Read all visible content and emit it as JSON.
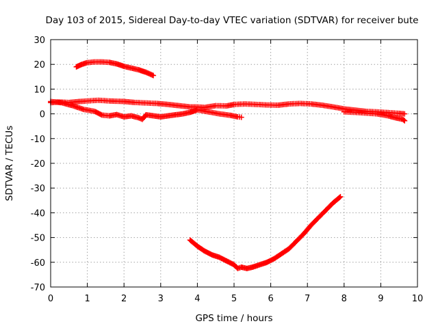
{
  "chart_data": {
    "type": "scatter",
    "title": "Day 103 of 2015, Sidereal Day-to-day VTEC variation (SDTVAR) for receiver bute",
    "xlabel": "GPS time / hours",
    "ylabel": "SDTVAR / TECUs",
    "xlim": [
      0,
      10
    ],
    "ylim": [
      -70,
      30
    ],
    "xticks": [
      "0",
      "1",
      "2",
      "3",
      "4",
      "5",
      "6",
      "7",
      "8",
      "9",
      "10"
    ],
    "yticks": [
      "-70",
      "-60",
      "-50",
      "-40",
      "-30",
      "-20",
      "-10",
      "0",
      "10",
      "20",
      "30"
    ],
    "grid": true,
    "marker": "plus",
    "color": "#ff0000",
    "series": [
      {
        "points": [
          [
            0.7,
            19
          ],
          [
            0.85,
            20
          ],
          [
            1.0,
            20.7
          ],
          [
            1.2,
            21
          ],
          [
            1.4,
            21
          ],
          [
            1.6,
            20.8
          ],
          [
            1.8,
            20.2
          ],
          [
            2.0,
            19.2
          ],
          [
            2.2,
            18.5
          ],
          [
            2.4,
            17.8
          ],
          [
            2.6,
            16.8
          ],
          [
            2.8,
            15.5
          ]
        ]
      },
      {
        "points": [
          [
            0,
            4.5
          ],
          [
            0.2,
            4.8
          ],
          [
            0.5,
            4.6
          ],
          [
            0.8,
            5
          ],
          [
            1.0,
            5.2
          ],
          [
            1.3,
            5.5
          ],
          [
            1.6,
            5.2
          ],
          [
            2.0,
            5
          ],
          [
            2.3,
            4.6
          ],
          [
            2.6,
            4.4
          ],
          [
            2.9,
            4.2
          ],
          [
            3.2,
            3.8
          ],
          [
            3.5,
            3.3
          ],
          [
            3.8,
            2.8
          ],
          [
            4.0,
            2.8
          ],
          [
            4.2,
            2.6
          ],
          [
            4.5,
            3.3
          ],
          [
            4.8,
            3.2
          ],
          [
            5.0,
            3.8
          ],
          [
            5.3,
            4
          ],
          [
            5.6,
            3.8
          ],
          [
            5.9,
            3.6
          ],
          [
            6.2,
            3.5
          ],
          [
            6.5,
            4
          ],
          [
            6.8,
            4.2
          ],
          [
            7.1,
            4
          ],
          [
            7.4,
            3.5
          ],
          [
            7.7,
            2.8
          ],
          [
            8.0,
            2
          ],
          [
            8.3,
            1.5
          ],
          [
            8.6,
            1
          ],
          [
            8.9,
            0.8
          ],
          [
            9.2,
            0.5
          ],
          [
            9.5,
            0.2
          ],
          [
            9.65,
            0
          ]
        ]
      },
      {
        "points": [
          [
            0,
            5
          ],
          [
            0.3,
            4.5
          ],
          [
            0.6,
            3.3
          ],
          [
            0.9,
            1.8
          ],
          [
            1.2,
            1
          ],
          [
            1.4,
            -0.5
          ],
          [
            1.6,
            -0.8
          ],
          [
            1.8,
            -0.3
          ],
          [
            2.0,
            -1.2
          ],
          [
            2.2,
            -0.8
          ],
          [
            2.4,
            -1.6
          ],
          [
            2.5,
            -2.2
          ],
          [
            2.6,
            -0.4
          ],
          [
            2.8,
            -0.8
          ],
          [
            3.0,
            -1.2
          ],
          [
            3.2,
            -0.8
          ],
          [
            3.4,
            -0.4
          ],
          [
            3.6,
            0
          ],
          [
            3.8,
            0.6
          ],
          [
            4.0,
            1.6
          ],
          [
            4.3,
            0.8
          ],
          [
            4.6,
            0
          ],
          [
            4.9,
            -0.6
          ],
          [
            5.1,
            -1.2
          ],
          [
            5.2,
            -1.4
          ]
        ]
      },
      {
        "points": [
          [
            8.0,
            0.8
          ],
          [
            8.3,
            0.6
          ],
          [
            8.6,
            0.3
          ],
          [
            8.9,
            0
          ],
          [
            9.2,
            -0.8
          ],
          [
            9.4,
            -1.6
          ],
          [
            9.6,
            -2.2
          ],
          [
            9.65,
            -2.8
          ]
        ]
      },
      {
        "points": [
          [
            3.8,
            -51
          ],
          [
            4.0,
            -53.5
          ],
          [
            4.2,
            -55.5
          ],
          [
            4.4,
            -57
          ],
          [
            4.6,
            -58
          ],
          [
            4.8,
            -59.5
          ],
          [
            5.0,
            -61
          ],
          [
            5.1,
            -62.5
          ],
          [
            5.2,
            -62
          ],
          [
            5.35,
            -62.5
          ],
          [
            5.5,
            -62
          ],
          [
            5.7,
            -61
          ],
          [
            5.9,
            -60
          ],
          [
            6.1,
            -58.5
          ],
          [
            6.3,
            -56.5
          ],
          [
            6.5,
            -54.5
          ],
          [
            6.7,
            -51.5
          ],
          [
            6.9,
            -48.5
          ],
          [
            7.1,
            -45
          ],
          [
            7.3,
            -42
          ],
          [
            7.5,
            -39
          ],
          [
            7.7,
            -36
          ],
          [
            7.9,
            -33.5
          ]
        ]
      }
    ]
  }
}
